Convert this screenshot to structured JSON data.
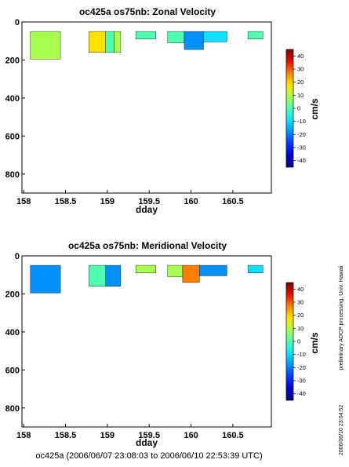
{
  "footer": "oc425a (2006/06/07 23:08:03 to 2006/06/10 22:53:39 UTC)",
  "side_note": "preliminary ADCP processing,   Univ. Hawaii",
  "side_stamp": "2006/06/10 23:04:52",
  "colorbar": {
    "unit": "cm/s",
    "min": -45,
    "max": 45,
    "ticks": [
      40,
      30,
      20,
      10,
      0,
      -10,
      -20,
      -30,
      -40
    ],
    "colors": [
      "#00007f",
      "#0000c8",
      "#0038ff",
      "#0090ff",
      "#10e0ff",
      "#50ffb0",
      "#a8ff50",
      "#ffe000",
      "#ff8000",
      "#e01000",
      "#800000"
    ]
  },
  "chart_data": [
    {
      "type": "heatmap",
      "title": "oc425a os75nb: Zonal Velocity",
      "xlabel": "dday",
      "ylabel": "",
      "xlim": [
        157.98,
        160.96
      ],
      "ylim": [
        900,
        0
      ],
      "x_ticks": [
        158,
        158.5,
        159,
        159.5,
        160,
        160.5
      ],
      "x_tick_labels": [
        "158",
        "158.5",
        "159",
        "159.5",
        "160",
        "160.5"
      ],
      "y_ticks": [
        0,
        200,
        400,
        600,
        800
      ],
      "y_tick_labels": [
        "0",
        "200",
        "400",
        "600",
        "800"
      ],
      "value_unit": "cm/s",
      "cells": [
        {
          "x": [
            158.08,
            158.44
          ],
          "depth": [
            50,
            195
          ],
          "value": 10
        },
        {
          "x": [
            158.78,
            158.98
          ],
          "depth": [
            50,
            160
          ],
          "value": 14
        },
        {
          "x": [
            158.98,
            159.08
          ],
          "depth": [
            50,
            160
          ],
          "value": 3
        },
        {
          "x": [
            159.08,
            159.16
          ],
          "depth": [
            50,
            160
          ],
          "value": 11
        },
        {
          "x": [
            159.34,
            159.58
          ],
          "depth": [
            50,
            90
          ],
          "value": 2
        },
        {
          "x": [
            159.72,
            159.92
          ],
          "depth": [
            50,
            110
          ],
          "value": -4
        },
        {
          "x": [
            159.92,
            160.15
          ],
          "depth": [
            50,
            145
          ],
          "value": -18
        },
        {
          "x": [
            160.15,
            160.43
          ],
          "depth": [
            50,
            105
          ],
          "value": -8
        },
        {
          "x": [
            160.68,
            160.86
          ],
          "depth": [
            50,
            90
          ],
          "value": 0
        }
      ]
    },
    {
      "type": "heatmap",
      "title": "oc425a os75nb: Meridional Velocity",
      "xlabel": "dday",
      "ylabel": "",
      "xlim": [
        157.98,
        160.96
      ],
      "ylim": [
        900,
        0
      ],
      "x_ticks": [
        158,
        158.5,
        159,
        159.5,
        160,
        160.5
      ],
      "x_tick_labels": [
        "158",
        "158.5",
        "159",
        "159.5",
        "160",
        "160.5"
      ],
      "y_ticks": [
        0,
        200,
        400,
        600,
        800
      ],
      "y_tick_labels": [
        "0",
        "200",
        "400",
        "600",
        "800"
      ],
      "value_unit": "cm/s",
      "cells": [
        {
          "x": [
            158.08,
            158.44
          ],
          "depth": [
            50,
            195
          ],
          "value": -18
        },
        {
          "x": [
            158.78,
            158.98
          ],
          "depth": [
            50,
            160
          ],
          "value": -4
        },
        {
          "x": [
            158.98,
            159.16
          ],
          "depth": [
            50,
            160
          ],
          "value": -14
        },
        {
          "x": [
            159.34,
            159.58
          ],
          "depth": [
            50,
            90
          ],
          "value": 8
        },
        {
          "x": [
            159.72,
            159.9
          ],
          "depth": [
            50,
            110
          ],
          "value": 12
        },
        {
          "x": [
            159.9,
            160.1
          ],
          "depth": [
            50,
            140
          ],
          "value": 24
        },
        {
          "x": [
            160.1,
            160.43
          ],
          "depth": [
            50,
            105
          ],
          "value": -15
        },
        {
          "x": [
            160.68,
            160.86
          ],
          "depth": [
            50,
            90
          ],
          "value": -12
        }
      ]
    }
  ]
}
